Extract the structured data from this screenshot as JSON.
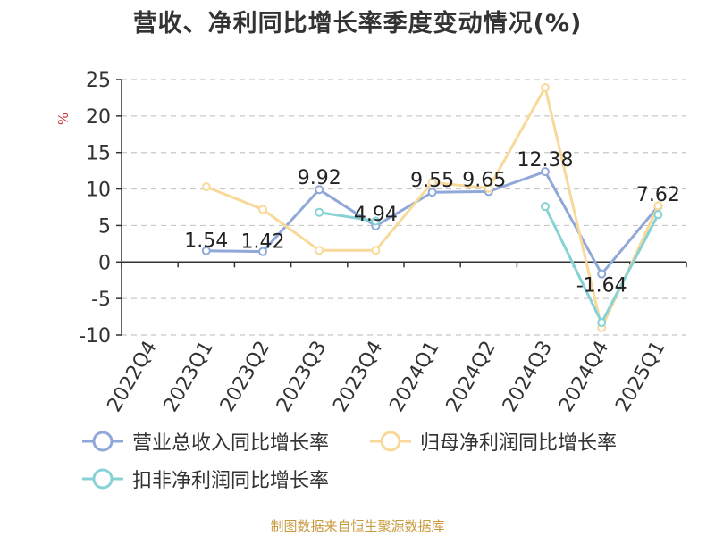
{
  "title": "营收、净利同比增长率季度变动情况(%)",
  "source": "制图数据来自恒生聚源数据库",
  "chart_data": {
    "type": "line",
    "title": "营收、净利同比增长率季度变动情况(%)",
    "ylabel": "%",
    "ylim": [
      -10,
      25
    ],
    "yticks": [
      -10,
      -5,
      0,
      5,
      10,
      15,
      20,
      25
    ],
    "grid": true,
    "legend_position": "bottom",
    "categories": [
      "2022Q4",
      "2023Q1",
      "2023Q2",
      "2023Q3",
      "2023Q4",
      "2024Q1",
      "2024Q2",
      "2024Q3",
      "2024Q4",
      "2025Q1"
    ],
    "series": [
      {
        "name": "营业总收入同比增长率",
        "color": "#8fa8d8",
        "values": [
          null,
          1.54,
          1.42,
          9.92,
          4.94,
          9.55,
          9.65,
          12.38,
          -1.64,
          7.62
        ],
        "labels": [
          "",
          "1.54",
          "1.42",
          "9.92",
          "4.94",
          "9.55",
          "9.65",
          "12.38",
          "-1.64",
          "7.62"
        ]
      },
      {
        "name": "归母净利润同比增长率",
        "color": "#f8d99a",
        "values": [
          null,
          10.3,
          7.2,
          1.6,
          1.6,
          10.9,
          10.1,
          23.9,
          -9.0,
          7.7
        ],
        "labels": []
      },
      {
        "name": "扣非净利润同比增长率",
        "color": "#86d2d4",
        "values": [
          null,
          null,
          null,
          6.8,
          5.6,
          null,
          null,
          7.6,
          -8.3,
          6.5
        ],
        "labels": []
      }
    ]
  }
}
